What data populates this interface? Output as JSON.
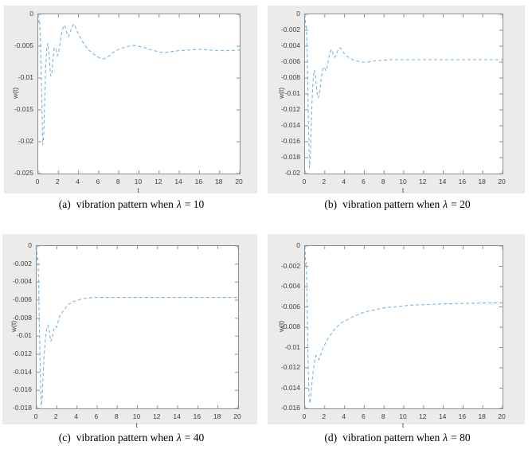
{
  "colors": {
    "panel_bg": "#ebebeb",
    "plot_bg": "#ffffff",
    "axis": "#8f8f8f",
    "tick_text": "#3f3f3f",
    "curve": "#77b5e2",
    "caption_text": "#000000"
  },
  "chart_data": [
    {
      "type": "line",
      "title": "",
      "xlabel": "t",
      "ylabel": "w(t)",
      "xlim": [
        0,
        20
      ],
      "ylim": [
        -0.025,
        0
      ],
      "xticks": [
        0,
        2,
        4,
        6,
        8,
        10,
        12,
        14,
        16,
        18,
        20
      ],
      "xtick_labels": [
        "0",
        "2",
        "4",
        "6",
        "8",
        "10",
        "12",
        "14",
        "16",
        "18",
        "20"
      ],
      "yticks": [
        0,
        -0.005,
        -0.01,
        -0.015,
        -0.02,
        -0.025
      ],
      "ytick_labels": [
        "0",
        "-0.005",
        "-0.01",
        "-0.015",
        "-0.02",
        "-0.025"
      ],
      "line_style": "dashed",
      "grid": false,
      "legend": null,
      "caption_index": "(a)",
      "caption_text": "vibration pattern when",
      "lambda_symbol": "λ",
      "caption_eq": "= 10",
      "series": [
        {
          "name": "w(t)",
          "x": [
            0,
            0.07,
            0.13,
            0.2,
            0.28,
            0.36,
            0.45,
            0.55,
            0.65,
            0.75,
            0.85,
            0.95,
            1.05,
            1.15,
            1.25,
            1.35,
            1.45,
            1.6,
            1.75,
            1.9,
            2.05,
            2.2,
            2.35,
            2.55,
            2.7,
            2.85,
            3.0,
            3.15,
            3.3,
            3.5,
            3.7,
            3.9,
            4.1,
            4.3,
            4.6,
            5.0,
            5.4,
            5.8,
            6.2,
            6.5,
            6.8,
            7.2,
            7.6,
            8.0,
            8.5,
            9.0,
            9.5,
            10.0,
            10.5,
            11.0,
            11.5,
            12.0,
            12.5,
            13.0,
            13.5,
            14.0,
            15.0,
            16.0,
            17.0,
            18.0,
            19.0,
            20.0
          ],
          "y": [
            0,
            -0.0013,
            -0.001,
            -0.003,
            -0.008,
            -0.014,
            -0.0205,
            -0.0185,
            -0.013,
            -0.008,
            -0.0052,
            -0.0045,
            -0.006,
            -0.008,
            -0.0097,
            -0.0092,
            -0.0072,
            -0.0052,
            -0.0055,
            -0.0065,
            -0.0058,
            -0.0042,
            -0.0027,
            -0.0017,
            -0.002,
            -0.003,
            -0.0035,
            -0.003,
            -0.0022,
            -0.0015,
            -0.002,
            -0.0028,
            -0.0034,
            -0.004,
            -0.0048,
            -0.0056,
            -0.0061,
            -0.0066,
            -0.0069,
            -0.007,
            -0.0068,
            -0.0063,
            -0.0058,
            -0.0055,
            -0.0052,
            -0.005,
            -0.0049,
            -0.005,
            -0.0052,
            -0.0055,
            -0.0057,
            -0.0059,
            -0.006,
            -0.0059,
            -0.0058,
            -0.0057,
            -0.0056,
            -0.0055,
            -0.0056,
            -0.0057,
            -0.0057,
            -0.0056
          ]
        }
      ]
    },
    {
      "type": "line",
      "title": "",
      "xlabel": "t",
      "ylabel": "w(t)",
      "xlim": [
        0,
        20
      ],
      "ylim": [
        -0.02,
        0
      ],
      "xticks": [
        0,
        2,
        4,
        6,
        8,
        10,
        12,
        14,
        16,
        18,
        20
      ],
      "xtick_labels": [
        "0",
        "2",
        "4",
        "6",
        "8",
        "10",
        "12",
        "14",
        "16",
        "18",
        "20"
      ],
      "yticks": [
        0,
        -0.002,
        -0.004,
        -0.006,
        -0.008,
        -0.01,
        -0.012,
        -0.014,
        -0.016,
        -0.018,
        -0.02
      ],
      "ytick_labels": [
        "0",
        "-0.002",
        "-0.004",
        "-0.006",
        "-0.008",
        "-0.01",
        "-0.012",
        "-0.014",
        "-0.016",
        "-0.018",
        "-0.02"
      ],
      "line_style": "dashed",
      "grid": false,
      "legend": null,
      "caption_index": "(b)",
      "caption_text": "vibration pattern when",
      "lambda_symbol": "λ",
      "caption_eq": "= 20",
      "series": [
        {
          "name": "w(t)",
          "x": [
            0,
            0.07,
            0.13,
            0.2,
            0.28,
            0.36,
            0.45,
            0.55,
            0.65,
            0.75,
            0.85,
            0.95,
            1.05,
            1.2,
            1.35,
            1.5,
            1.65,
            1.8,
            1.95,
            2.1,
            2.25,
            2.4,
            2.55,
            2.7,
            2.85,
            3.0,
            3.15,
            3.3,
            3.5,
            3.7,
            3.9,
            4.1,
            4.4,
            4.7,
            5.0,
            5.4,
            5.8,
            6.3,
            6.8,
            7.3,
            7.9,
            8.5,
            9.2,
            10.0,
            11.0,
            12.0,
            13.0,
            14.0,
            15.0,
            16.0,
            17.0,
            18.0,
            19.0,
            20.0
          ],
          "y": [
            0,
            -0.0016,
            -0.0013,
            -0.004,
            -0.009,
            -0.0145,
            -0.0193,
            -0.0178,
            -0.013,
            -0.0098,
            -0.0078,
            -0.007,
            -0.0078,
            -0.0096,
            -0.0105,
            -0.0096,
            -0.008,
            -0.0069,
            -0.0066,
            -0.0071,
            -0.0066,
            -0.0055,
            -0.0047,
            -0.0044,
            -0.005,
            -0.0054,
            -0.0051,
            -0.0046,
            -0.0042,
            -0.0044,
            -0.0048,
            -0.0051,
            -0.0054,
            -0.0056,
            -0.0058,
            -0.0059,
            -0.006,
            -0.006,
            -0.0059,
            -0.0058,
            -0.0058,
            -0.0057,
            -0.0057,
            -0.0057,
            -0.0057,
            -0.0057,
            -0.0057,
            -0.0057,
            -0.0057,
            -0.0057,
            -0.0057,
            -0.0057,
            -0.0057,
            -0.0057
          ]
        }
      ]
    },
    {
      "type": "line",
      "title": "",
      "xlabel": "t",
      "ylabel": "w(t)",
      "xlim": [
        0,
        20
      ],
      "ylim": [
        -0.018,
        0
      ],
      "xticks": [
        0,
        2,
        4,
        6,
        8,
        10,
        12,
        14,
        16,
        18,
        20
      ],
      "xtick_labels": [
        "0",
        "2",
        "4",
        "6",
        "8",
        "10",
        "12",
        "14",
        "16",
        "18",
        "20"
      ],
      "yticks": [
        0,
        -0.002,
        -0.004,
        -0.006,
        -0.008,
        -0.01,
        -0.012,
        -0.014,
        -0.016,
        -0.018
      ],
      "ytick_labels": [
        "0",
        "-0.002",
        "-0.004",
        "-0.006",
        "-0.008",
        "-0.01",
        "-0.012",
        "-0.014",
        "-0.016",
        "-0.018"
      ],
      "line_style": "dashed",
      "grid": false,
      "legend": null,
      "caption_index": "(c)",
      "caption_text": "vibration pattern when",
      "lambda_symbol": "λ",
      "caption_eq": "= 40",
      "series": [
        {
          "name": "w(t)",
          "x": [
            0,
            0.07,
            0.13,
            0.2,
            0.28,
            0.36,
            0.45,
            0.55,
            0.65,
            0.75,
            0.85,
            0.95,
            1.1,
            1.25,
            1.4,
            1.55,
            1.7,
            1.85,
            2.0,
            2.15,
            2.3,
            2.45,
            2.6,
            2.75,
            2.9,
            3.1,
            3.3,
            3.5,
            3.8,
            4.1,
            4.4,
            4.8,
            5.2,
            5.6,
            6.0,
            6.5,
            7.0,
            8.0,
            9.0,
            10.0,
            11.0,
            12.0,
            13.0,
            14.0,
            15.0,
            16.0,
            17.0,
            18.0,
            19.0,
            20.0
          ],
          "y": [
            0,
            -0.0016,
            -0.0013,
            -0.004,
            -0.009,
            -0.014,
            -0.0177,
            -0.0168,
            -0.0142,
            -0.012,
            -0.0105,
            -0.0095,
            -0.0088,
            -0.0093,
            -0.0106,
            -0.0101,
            -0.0093,
            -0.0089,
            -0.009,
            -0.0083,
            -0.0077,
            -0.0076,
            -0.0072,
            -0.0071,
            -0.0068,
            -0.0065,
            -0.0064,
            -0.0062,
            -0.0061,
            -0.006,
            -0.0059,
            -0.0058,
            -0.00575,
            -0.0057,
            -0.0057,
            -0.0057,
            -0.0057,
            -0.0057,
            -0.0057,
            -0.0057,
            -0.0057,
            -0.0057,
            -0.0057,
            -0.0057,
            -0.0057,
            -0.0057,
            -0.0057,
            -0.0057,
            -0.0057,
            -0.0057
          ]
        }
      ]
    },
    {
      "type": "line",
      "title": "",
      "xlabel": "t",
      "ylabel": "w(t)",
      "xlim": [
        0,
        20
      ],
      "ylim": [
        -0.016,
        0
      ],
      "xticks": [
        0,
        2,
        4,
        6,
        8,
        10,
        12,
        14,
        16,
        18,
        20
      ],
      "xtick_labels": [
        "0",
        "2",
        "4",
        "6",
        "8",
        "10",
        "12",
        "14",
        "16",
        "18",
        "20"
      ],
      "yticks": [
        0,
        -0.002,
        -0.004,
        -0.006,
        -0.008,
        -0.01,
        -0.012,
        -0.014,
        -0.016
      ],
      "ytick_labels": [
        "0",
        "-0.002",
        "-0.004",
        "-0.006",
        "-0.008",
        "-0.01",
        "-0.012",
        "-0.014",
        "-0.016"
      ],
      "line_style": "dashed",
      "grid": false,
      "legend": null,
      "caption_index": "(d)",
      "caption_text": "vibration pattern when",
      "lambda_symbol": "λ",
      "caption_eq": "= 80",
      "series": [
        {
          "name": "w(t)",
          "x": [
            0,
            0.07,
            0.13,
            0.2,
            0.3,
            0.4,
            0.5,
            0.6,
            0.7,
            0.8,
            0.95,
            1.1,
            1.25,
            1.4,
            1.55,
            1.7,
            1.9,
            2.1,
            2.4,
            2.7,
            3.0,
            3.4,
            3.8,
            4.2,
            4.6,
            5.0,
            5.5,
            6.0,
            6.5,
            7.0,
            7.5,
            8.0,
            8.5,
            9.0,
            10.0,
            11.0,
            12.0,
            13.0,
            14.0,
            15.0,
            16.0,
            17.0,
            18.0,
            19.0,
            20.0
          ],
          "y": [
            0,
            -0.002,
            -0.0016,
            -0.005,
            -0.011,
            -0.0148,
            -0.0155,
            -0.0147,
            -0.0135,
            -0.0126,
            -0.0115,
            -0.0108,
            -0.011,
            -0.0112,
            -0.0108,
            -0.0104,
            -0.0099,
            -0.0095,
            -0.009,
            -0.0086,
            -0.0082,
            -0.0078,
            -0.0075,
            -0.0073,
            -0.0071,
            -0.0069,
            -0.0067,
            -0.0065,
            -0.0064,
            -0.0063,
            -0.0062,
            -0.0061,
            -0.00605,
            -0.006,
            -0.0059,
            -0.0058,
            -0.00578,
            -0.00574,
            -0.0057,
            -0.00568,
            -0.00566,
            -0.00564,
            -0.00562,
            -0.0056,
            -0.0056
          ]
        }
      ]
    }
  ]
}
